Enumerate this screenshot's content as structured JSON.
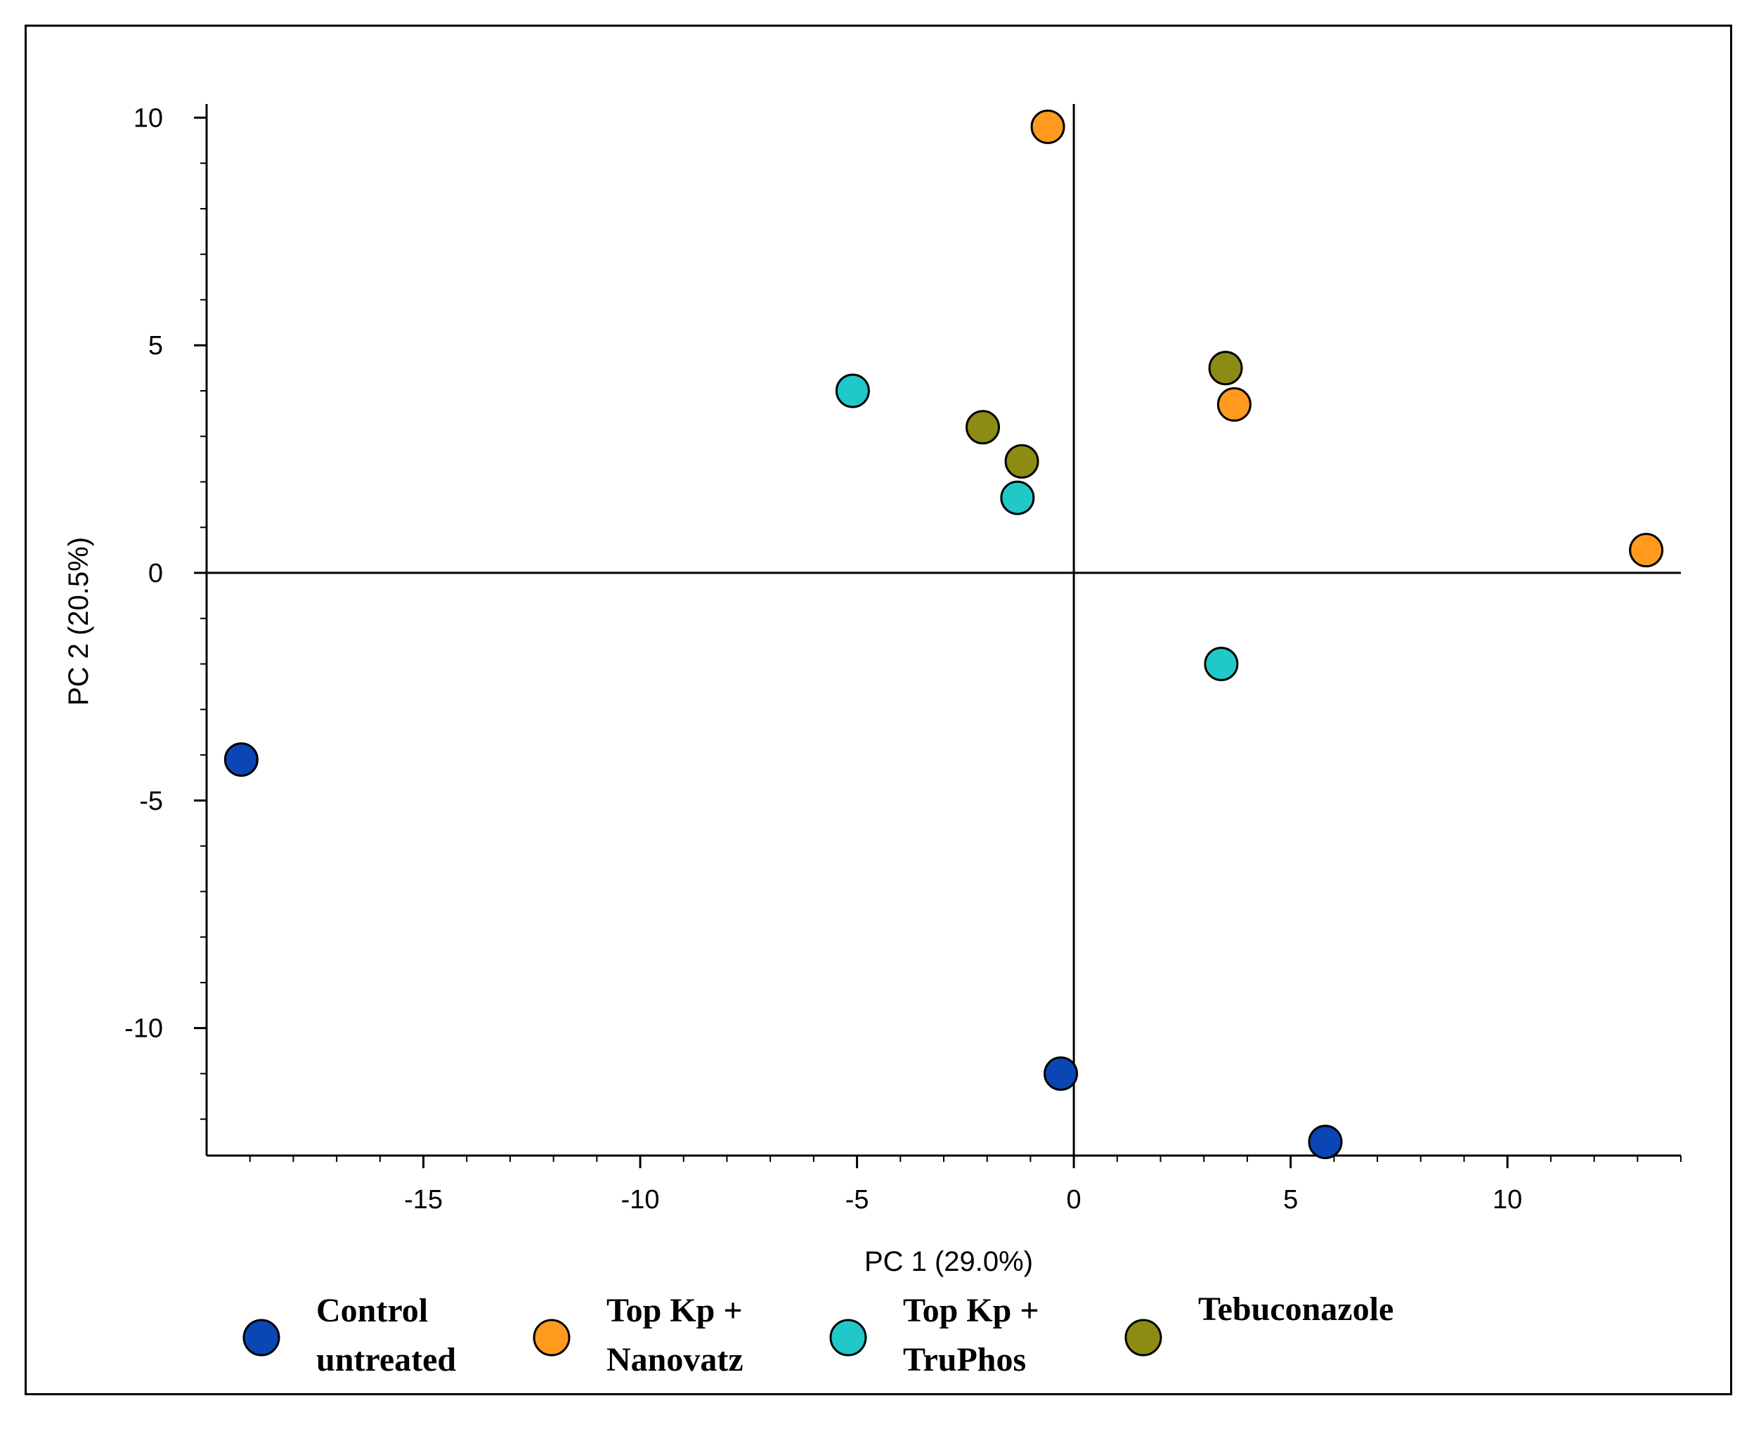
{
  "chart_data": {
    "type": "scatter",
    "title": "",
    "xlabel": "PC 1 (29.0%)",
    "ylabel": "PC 2 (20.5%)",
    "xlim": [
      -20,
      14
    ],
    "ylim": [
      -12.8,
      10.3
    ],
    "xticks": [
      -15,
      -10,
      -5,
      0,
      5,
      10
    ],
    "yticks": [
      -10,
      -5,
      0,
      5,
      10
    ],
    "grid": false,
    "legend": "bottom",
    "series": [
      {
        "name": "Control untreated",
        "label_lines": [
          "Control",
          "untreated"
        ],
        "color": "#0a46b4",
        "points": [
          {
            "x": -19.2,
            "y": -4.1
          },
          {
            "x": -0.3,
            "y": -11.0
          },
          {
            "x": 5.8,
            "y": -12.5
          }
        ]
      },
      {
        "name": "Top Kp + Nanovatz",
        "label_lines": [
          "Top Kp +",
          "Nanovatz"
        ],
        "color": "#ff9a1e",
        "points": [
          {
            "x": -0.6,
            "y": 9.8
          },
          {
            "x": 3.7,
            "y": 3.7
          },
          {
            "x": 13.2,
            "y": 0.5
          }
        ]
      },
      {
        "name": "Top Kp + TruPhos",
        "label_lines": [
          "Top Kp +",
          "TruPhos"
        ],
        "color": "#20c8c8",
        "points": [
          {
            "x": -5.1,
            "y": 4.0
          },
          {
            "x": -1.3,
            "y": 1.65
          },
          {
            "x": 3.4,
            "y": -2.0
          }
        ]
      },
      {
        "name": "Tebuconazole",
        "label_lines": [
          "Tebuconazole"
        ],
        "color": "#8c8c14",
        "points": [
          {
            "x": -2.1,
            "y": 3.2
          },
          {
            "x": -1.2,
            "y": 2.45
          },
          {
            "x": 3.5,
            "y": 4.5
          }
        ]
      }
    ]
  }
}
